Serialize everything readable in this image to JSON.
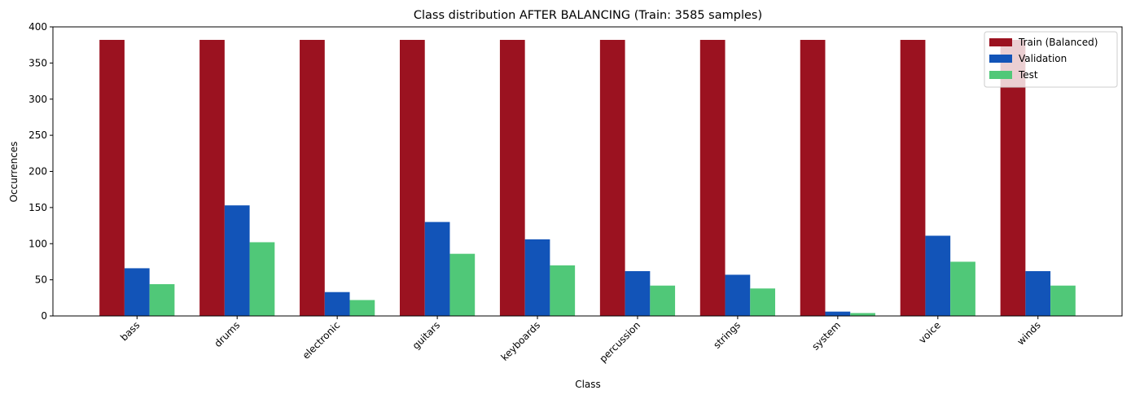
{
  "chart_data": {
    "type": "bar",
    "title": "Class distribution AFTER BALANCING (Train: 3585 samples)",
    "xlabel": "Class",
    "ylabel": "Occurrences",
    "ylim": [
      0,
      400
    ],
    "yticks": [
      0,
      50,
      100,
      150,
      200,
      250,
      300,
      350,
      400
    ],
    "categories": [
      "bass",
      "drums",
      "electronic",
      "guitars",
      "keyboards",
      "percussion",
      "strings",
      "system",
      "voice",
      "winds"
    ],
    "series": [
      {
        "name": "Train (Balanced)",
        "color": "#9b1220",
        "values": [
          382,
          382,
          382,
          382,
          382,
          382,
          382,
          382,
          382,
          382
        ]
      },
      {
        "name": "Validation",
        "color": "#1254b8",
        "values": [
          66,
          153,
          33,
          130,
          106,
          62,
          57,
          6,
          111,
          62
        ]
      },
      {
        "name": "Test",
        "color": "#50c878",
        "values": [
          44,
          102,
          22,
          86,
          70,
          42,
          38,
          4,
          75,
          42
        ]
      }
    ],
    "legend_position": "top-right",
    "grid": false
  }
}
